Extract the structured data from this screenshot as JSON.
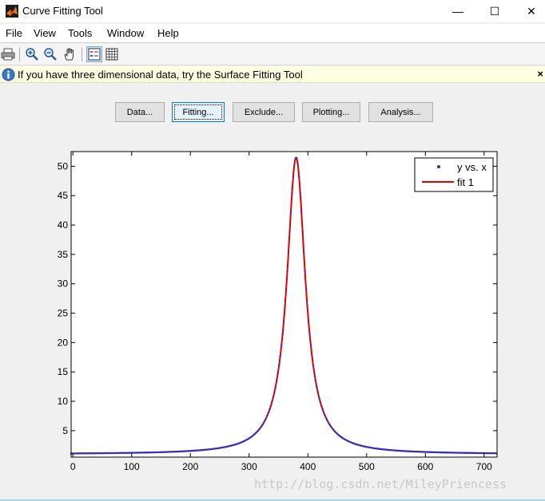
{
  "window": {
    "title": "Curve Fitting Tool",
    "minimize": "—",
    "maximize": "☐",
    "close": "✕"
  },
  "menu": [
    "File",
    "View",
    "Tools",
    "Window",
    "Help"
  ],
  "toolbar": {
    "icons": [
      "print-icon",
      "zoom-in-icon",
      "zoom-out-icon",
      "pan-hand-icon",
      "legend-icon",
      "grid-icon"
    ]
  },
  "info": {
    "message": "If you have three dimensional data, try the Surface Fitting Tool",
    "close": "×"
  },
  "buttons": [
    "Data...",
    "Fitting...",
    "Exclude...",
    "Plotting...",
    "Analysis..."
  ],
  "colors": {
    "data_points": "#3030c0",
    "fit_line": "#e00000"
  },
  "chart_data": {
    "type": "scatter",
    "xlim": [
      -3,
      722
    ],
    "ylim": [
      0.5,
      52.5
    ],
    "xticks": [
      0,
      100,
      200,
      300,
      400,
      500,
      600,
      700
    ],
    "yticks": [
      5,
      10,
      15,
      20,
      25,
      30,
      35,
      40,
      45,
      50
    ],
    "grid": false,
    "legend_position": "top-right",
    "series": [
      {
        "name": "y vs. x",
        "style": "points"
      },
      {
        "name": "fit 1",
        "style": "line"
      }
    ],
    "model": {
      "form": "lorentzian",
      "peak_x": 380,
      "peak_y": 51.5,
      "half_width": 19,
      "baseline": 1.0
    }
  },
  "watermark": "http://blog.csdn.net/MileyPriencess"
}
